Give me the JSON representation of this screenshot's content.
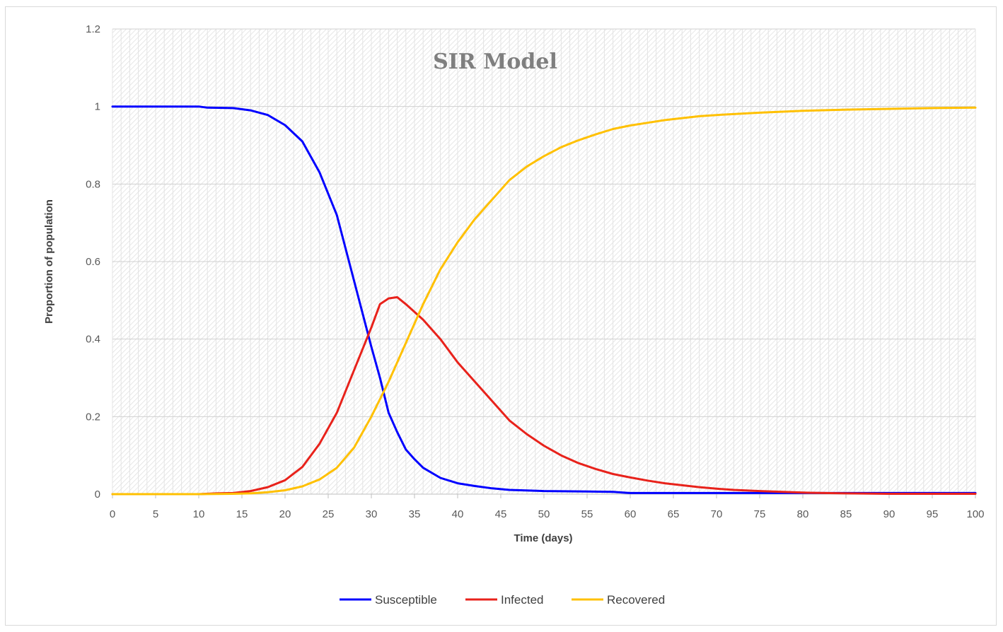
{
  "chart_data": {
    "type": "line",
    "title": "SIR Model",
    "xlabel": "Time (days)",
    "ylabel": "Proportion  of population",
    "xlim": [
      0,
      100
    ],
    "ylim": [
      0,
      1.2
    ],
    "x_ticks": [
      "0",
      "5",
      "10",
      "15",
      "20",
      "25",
      "30",
      "35",
      "40",
      "45",
      "50",
      "55",
      "60",
      "65",
      "70",
      "75",
      "80",
      "85",
      "90",
      "95",
      "100"
    ],
    "y_ticks": [
      "0",
      "0.2",
      "0.4",
      "0.6",
      "0.8",
      "1",
      "1.2"
    ],
    "grid": true,
    "legend_position": "bottom",
    "series": [
      {
        "name": "Susceptible",
        "color": "#0000ff",
        "points": [
          [
            0,
            1
          ],
          [
            5,
            1
          ],
          [
            10,
            1
          ],
          [
            11,
            0.997
          ],
          [
            14,
            0.996
          ],
          [
            16,
            0.99
          ],
          [
            18,
            0.978
          ],
          [
            20,
            0.952
          ],
          [
            22,
            0.91
          ],
          [
            24,
            0.83
          ],
          [
            26,
            0.72
          ],
          [
            28,
            0.55
          ],
          [
            30,
            0.38
          ],
          [
            31,
            0.3
          ],
          [
            32,
            0.21
          ],
          [
            33,
            0.16
          ],
          [
            34,
            0.115
          ],
          [
            35,
            0.09
          ],
          [
            36,
            0.068
          ],
          [
            38,
            0.042
          ],
          [
            40,
            0.028
          ],
          [
            42,
            0.021
          ],
          [
            44,
            0.015
          ],
          [
            46,
            0.011
          ],
          [
            50,
            0.008
          ],
          [
            55,
            0.007
          ],
          [
            58,
            0.006
          ],
          [
            60,
            0.003
          ],
          [
            70,
            0.003
          ],
          [
            80,
            0.003
          ],
          [
            90,
            0.003
          ],
          [
            100,
            0.003
          ]
        ]
      },
      {
        "name": "Infected",
        "color": "#e8221b",
        "points": [
          [
            0,
            0
          ],
          [
            10,
            0
          ],
          [
            12,
            0.002
          ],
          [
            14,
            0.003
          ],
          [
            16,
            0.008
          ],
          [
            18,
            0.018
          ],
          [
            20,
            0.036
          ],
          [
            22,
            0.07
          ],
          [
            24,
            0.13
          ],
          [
            26,
            0.21
          ],
          [
            28,
            0.32
          ],
          [
            30,
            0.43
          ],
          [
            31,
            0.49
          ],
          [
            32,
            0.505
          ],
          [
            33,
            0.508
          ],
          [
            34,
            0.49
          ],
          [
            36,
            0.45
          ],
          [
            38,
            0.4
          ],
          [
            40,
            0.34
          ],
          [
            42,
            0.29
          ],
          [
            44,
            0.24
          ],
          [
            46,
            0.19
          ],
          [
            48,
            0.155
          ],
          [
            50,
            0.125
          ],
          [
            52,
            0.1
          ],
          [
            54,
            0.08
          ],
          [
            56,
            0.065
          ],
          [
            58,
            0.052
          ],
          [
            60,
            0.043
          ],
          [
            62,
            0.035
          ],
          [
            64,
            0.028
          ],
          [
            66,
            0.023
          ],
          [
            68,
            0.018
          ],
          [
            70,
            0.014
          ],
          [
            72,
            0.011
          ],
          [
            75,
            0.008
          ],
          [
            80,
            0.004
          ],
          [
            85,
            0.002
          ],
          [
            90,
            0.001
          ],
          [
            100,
            0.001
          ]
        ]
      },
      {
        "name": "Recovered",
        "color": "#ffc000",
        "points": [
          [
            0,
            0
          ],
          [
            10,
            0
          ],
          [
            14,
            0.001
          ],
          [
            16,
            0.002
          ],
          [
            18,
            0.005
          ],
          [
            20,
            0.01
          ],
          [
            22,
            0.02
          ],
          [
            24,
            0.038
          ],
          [
            26,
            0.068
          ],
          [
            28,
            0.12
          ],
          [
            30,
            0.2
          ],
          [
            32,
            0.29
          ],
          [
            34,
            0.39
          ],
          [
            36,
            0.49
          ],
          [
            38,
            0.58
          ],
          [
            40,
            0.65
          ],
          [
            42,
            0.71
          ],
          [
            44,
            0.76
          ],
          [
            46,
            0.81
          ],
          [
            48,
            0.845
          ],
          [
            50,
            0.872
          ],
          [
            52,
            0.895
          ],
          [
            54,
            0.913
          ],
          [
            56,
            0.928
          ],
          [
            58,
            0.942
          ],
          [
            60,
            0.951
          ],
          [
            62,
            0.958
          ],
          [
            64,
            0.965
          ],
          [
            66,
            0.97
          ],
          [
            68,
            0.975
          ],
          [
            70,
            0.978
          ],
          [
            75,
            0.984
          ],
          [
            80,
            0.989
          ],
          [
            85,
            0.992
          ],
          [
            90,
            0.994
          ],
          [
            95,
            0.996
          ],
          [
            100,
            0.997
          ]
        ]
      }
    ]
  }
}
